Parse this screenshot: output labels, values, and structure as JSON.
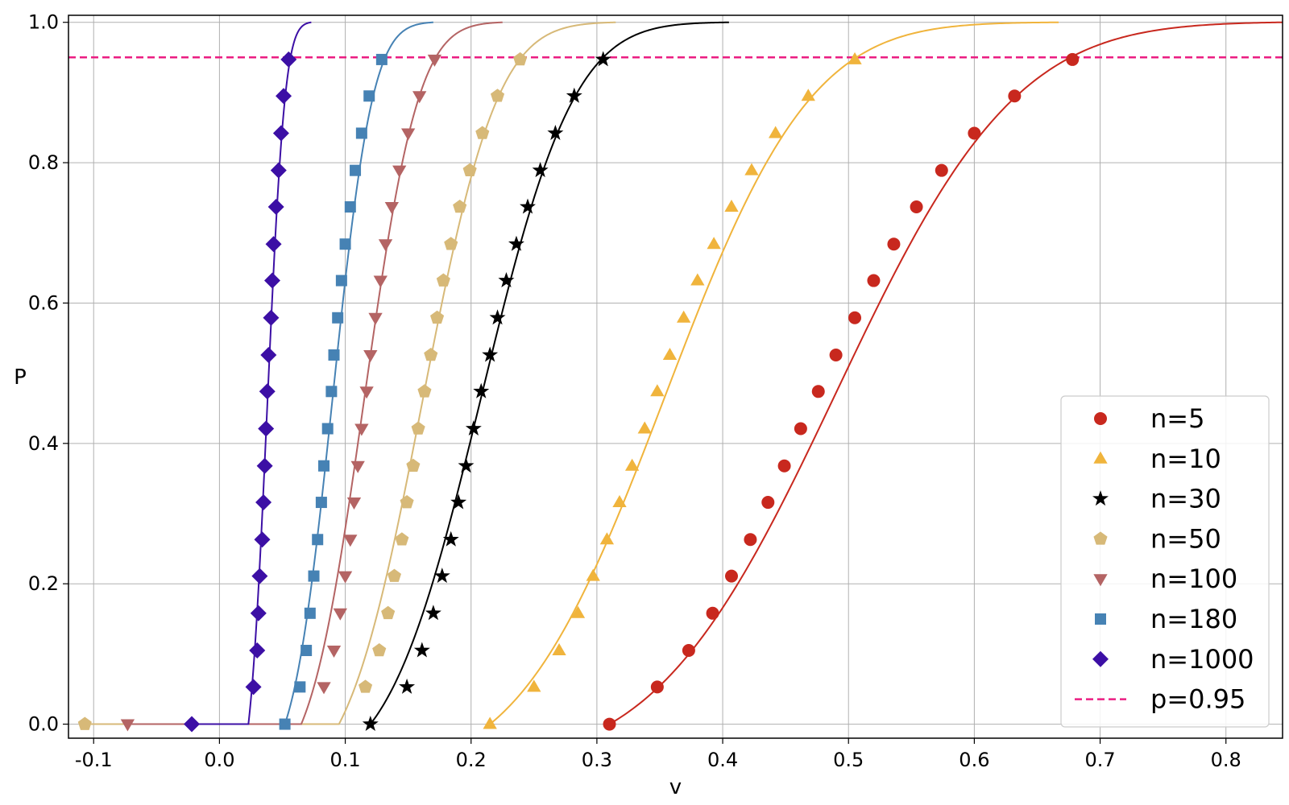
{
  "chart_data": {
    "type": "line",
    "xlabel": "v",
    "ylabel": "P",
    "xlim": [
      -0.12,
      0.845
    ],
    "ylim": [
      -0.02,
      1.01
    ],
    "xticks": [
      "-0.1",
      "0.0",
      "0.1",
      "0.2",
      "0.3",
      "0.4",
      "0.5",
      "0.6",
      "0.7",
      "0.8"
    ],
    "xtick_values": [
      -0.1,
      0.0,
      0.1,
      0.2,
      0.3,
      0.4,
      0.5,
      0.6,
      0.7,
      0.8
    ],
    "yticks": [
      "0.0",
      "0.2",
      "0.4",
      "0.6",
      "0.8",
      "1.0"
    ],
    "ytick_values": [
      0.0,
      0.2,
      0.4,
      0.6,
      0.8,
      1.0
    ],
    "grid": true,
    "legend_position": "bottom-right",
    "series": [
      {
        "name": "n=5",
        "color": "#c8281e",
        "marker": "circle",
        "curve": {
          "start": 0.31,
          "mu": 0.49,
          "sigma": 0.112,
          "end": 0.845
        },
        "points": [
          [
            0.31,
            0.0
          ],
          [
            0.348,
            0.053
          ],
          [
            0.373,
            0.105
          ],
          [
            0.392,
            0.158
          ],
          [
            0.407,
            0.211
          ],
          [
            0.422,
            0.263
          ],
          [
            0.436,
            0.316
          ],
          [
            0.449,
            0.368
          ],
          [
            0.462,
            0.421
          ],
          [
            0.476,
            0.474
          ],
          [
            0.49,
            0.526
          ],
          [
            0.505,
            0.579
          ],
          [
            0.52,
            0.632
          ],
          [
            0.536,
            0.684
          ],
          [
            0.554,
            0.737
          ],
          [
            0.574,
            0.789
          ],
          [
            0.6,
            0.842
          ],
          [
            0.632,
            0.895
          ],
          [
            0.678,
            0.947
          ]
        ]
      },
      {
        "name": "n=10",
        "color": "#f0b43c",
        "marker": "triangle-up",
        "curve": {
          "start": 0.215,
          "mu": 0.354,
          "sigma": 0.091,
          "end": 0.667
        },
        "points": [
          [
            0.215,
            0.0
          ],
          [
            0.25,
            0.053
          ],
          [
            0.27,
            0.105
          ],
          [
            0.285,
            0.158
          ],
          [
            0.297,
            0.211
          ],
          [
            0.308,
            0.263
          ],
          [
            0.318,
            0.316
          ],
          [
            0.328,
            0.368
          ],
          [
            0.338,
            0.421
          ],
          [
            0.348,
            0.474
          ],
          [
            0.358,
            0.526
          ],
          [
            0.369,
            0.579
          ],
          [
            0.38,
            0.632
          ],
          [
            0.393,
            0.684
          ],
          [
            0.407,
            0.737
          ],
          [
            0.423,
            0.789
          ],
          [
            0.442,
            0.842
          ],
          [
            0.468,
            0.895
          ],
          [
            0.505,
            0.947
          ]
        ]
      },
      {
        "name": "n=30",
        "color": "#000000",
        "marker": "star",
        "curve": {
          "start": 0.12,
          "mu": 0.208,
          "sigma": 0.058,
          "end": 0.405
        },
        "points": [
          [
            0.12,
            0.0
          ],
          [
            0.149,
            0.053
          ],
          [
            0.161,
            0.105
          ],
          [
            0.17,
            0.158
          ],
          [
            0.177,
            0.211
          ],
          [
            0.184,
            0.263
          ],
          [
            0.19,
            0.316
          ],
          [
            0.196,
            0.368
          ],
          [
            0.202,
            0.421
          ],
          [
            0.208,
            0.474
          ],
          [
            0.215,
            0.526
          ],
          [
            0.221,
            0.579
          ],
          [
            0.228,
            0.632
          ],
          [
            0.236,
            0.684
          ],
          [
            0.245,
            0.737
          ],
          [
            0.255,
            0.789
          ],
          [
            0.267,
            0.842
          ],
          [
            0.282,
            0.895
          ],
          [
            0.305,
            0.947
          ]
        ]
      },
      {
        "name": "n=50",
        "color": "#d7b978",
        "marker": "pentagon",
        "curve": {
          "start": -0.107,
          "break": 0.095,
          "mu": 0.161,
          "sigma": 0.047,
          "end": 0.315
        },
        "points": [
          [
            -0.107,
            0.0
          ],
          [
            0.116,
            0.053
          ],
          [
            0.127,
            0.105
          ],
          [
            0.134,
            0.158
          ],
          [
            0.139,
            0.211
          ],
          [
            0.145,
            0.263
          ],
          [
            0.149,
            0.316
          ],
          [
            0.154,
            0.368
          ],
          [
            0.158,
            0.421
          ],
          [
            0.163,
            0.474
          ],
          [
            0.168,
            0.526
          ],
          [
            0.173,
            0.579
          ],
          [
            0.178,
            0.632
          ],
          [
            0.184,
            0.684
          ],
          [
            0.191,
            0.737
          ],
          [
            0.199,
            0.789
          ],
          [
            0.209,
            0.842
          ],
          [
            0.221,
            0.895
          ],
          [
            0.239,
            0.947
          ]
        ]
      },
      {
        "name": "n=100",
        "color": "#b46464",
        "marker": "triangle-down",
        "curve": {
          "start": -0.073,
          "break": 0.065,
          "mu": 0.115,
          "sigma": 0.034,
          "end": 0.225
        },
        "points": [
          [
            -0.073,
            0.0
          ],
          [
            0.083,
            0.053
          ],
          [
            0.091,
            0.105
          ],
          [
            0.096,
            0.158
          ],
          [
            0.1,
            0.211
          ],
          [
            0.104,
            0.263
          ],
          [
            0.107,
            0.316
          ],
          [
            0.11,
            0.368
          ],
          [
            0.113,
            0.421
          ],
          [
            0.117,
            0.474
          ],
          [
            0.12,
            0.526
          ],
          [
            0.124,
            0.579
          ],
          [
            0.128,
            0.632
          ],
          [
            0.132,
            0.684
          ],
          [
            0.137,
            0.737
          ],
          [
            0.143,
            0.789
          ],
          [
            0.15,
            0.842
          ],
          [
            0.159,
            0.895
          ],
          [
            0.171,
            0.947
          ]
        ]
      },
      {
        "name": "n=180",
        "color": "#4682b4",
        "marker": "square",
        "curve": {
          "start": 0.052,
          "mu": 0.09,
          "sigma": 0.025,
          "end": 0.17
        },
        "points": [
          [
            0.052,
            0.0
          ],
          [
            0.064,
            0.053
          ],
          [
            0.069,
            0.105
          ],
          [
            0.072,
            0.158
          ],
          [
            0.075,
            0.211
          ],
          [
            0.078,
            0.263
          ],
          [
            0.081,
            0.316
          ],
          [
            0.083,
            0.368
          ],
          [
            0.086,
            0.421
          ],
          [
            0.089,
            0.474
          ],
          [
            0.091,
            0.526
          ],
          [
            0.094,
            0.579
          ],
          [
            0.097,
            0.632
          ],
          [
            0.1,
            0.684
          ],
          [
            0.104,
            0.737
          ],
          [
            0.108,
            0.789
          ],
          [
            0.113,
            0.842
          ],
          [
            0.119,
            0.895
          ],
          [
            0.129,
            0.947
          ]
        ]
      },
      {
        "name": "n=1000",
        "color": "#3c0fa5",
        "marker": "diamond",
        "curve": {
          "start": -0.022,
          "break": 0.023,
          "mu": 0.038,
          "sigma": 0.011,
          "end": 0.073
        },
        "points": [
          [
            -0.022,
            0.0
          ],
          [
            0.027,
            0.053
          ],
          [
            0.03,
            0.105
          ],
          [
            0.031,
            0.158
          ],
          [
            0.032,
            0.211
          ],
          [
            0.034,
            0.263
          ],
          [
            0.035,
            0.316
          ],
          [
            0.036,
            0.368
          ],
          [
            0.037,
            0.421
          ],
          [
            0.038,
            0.474
          ],
          [
            0.039,
            0.526
          ],
          [
            0.041,
            0.579
          ],
          [
            0.042,
            0.632
          ],
          [
            0.043,
            0.684
          ],
          [
            0.045,
            0.737
          ],
          [
            0.047,
            0.789
          ],
          [
            0.049,
            0.842
          ],
          [
            0.051,
            0.895
          ],
          [
            0.055,
            0.947
          ]
        ]
      }
    ],
    "reference_line": {
      "name": "p=0.95",
      "y": 0.95,
      "color": "#eb1e82",
      "style": "dashed"
    }
  }
}
